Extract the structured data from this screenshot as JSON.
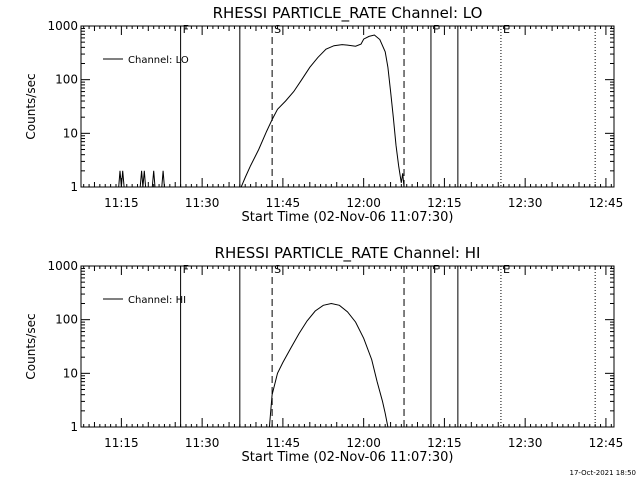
{
  "chart_data": [
    {
      "type": "line",
      "title": "RHESSI PARTICLE_RATE Channel: LO",
      "xlabel": "Start Time (02-Nov-06 11:07:30)",
      "ylabel": "Counts/sec",
      "yscale": "log",
      "ylim": [
        1,
        1000
      ],
      "xlim": [
        "11:07:30",
        "12:46:30"
      ],
      "x_ticks": [
        "11:15",
        "11:30",
        "11:45",
        "12:00",
        "12:15",
        "12:30",
        "12:45"
      ],
      "y_ticks": [
        "1",
        "10",
        "100",
        "1000"
      ],
      "legend": {
        "entry": "Channel: LO",
        "placement": "top-left"
      },
      "markers": [
        {
          "label": "F",
          "time": "11:26:00",
          "style": "solid"
        },
        {
          "label": "",
          "time": "11:37:00",
          "style": "solid"
        },
        {
          "label": "S",
          "time": "11:43:00",
          "style": "dashed"
        },
        {
          "label": "",
          "time": "12:07:30",
          "style": "dashed"
        },
        {
          "label": "F",
          "time": "12:12:30",
          "style": "solid"
        },
        {
          "label": "",
          "time": "12:17:30",
          "style": "solid"
        },
        {
          "label": "E",
          "time": "12:25:30",
          "style": "dotted"
        },
        {
          "label": "",
          "time": "12:43:00",
          "style": "dotted"
        }
      ],
      "series": [
        {
          "name": "Channel: LO",
          "points": [
            [
              "11:14:30",
              1
            ],
            [
              "11:14:45",
              2
            ],
            [
              "11:15:00",
              1
            ],
            [
              "11:15:15",
              2
            ],
            [
              "11:15:30",
              1
            ],
            [
              "11:18:30",
              1
            ],
            [
              "11:18:45",
              2
            ],
            [
              "11:19:00",
              1
            ],
            [
              "11:19:15",
              2
            ],
            [
              "11:19:30",
              1
            ],
            [
              "11:20:45",
              1
            ],
            [
              "11:21:00",
              2
            ],
            [
              "11:21:15",
              1
            ],
            [
              "11:22:30",
              1
            ],
            [
              "11:22:45",
              2
            ],
            [
              "11:23:00",
              1
            ],
            [
              "11:37:15",
              1
            ],
            [
              "11:38:00",
              1.5
            ],
            [
              "11:39:00",
              2.5
            ],
            [
              "11:40:30",
              5
            ],
            [
              "11:42:00",
              11
            ],
            [
              "11:43:00",
              18
            ],
            [
              "11:44:00",
              28
            ],
            [
              "11:45:30",
              40
            ],
            [
              "11:47:00",
              60
            ],
            [
              "11:48:30",
              100
            ],
            [
              "11:50:00",
              170
            ],
            [
              "11:51:30",
              260
            ],
            [
              "11:53:00",
              370
            ],
            [
              "11:54:30",
              430
            ],
            [
              "11:56:00",
              450
            ],
            [
              "11:57:00",
              440
            ],
            [
              "11:58:30",
              420
            ],
            [
              "11:59:30",
              460
            ],
            [
              "12:00:00",
              570
            ],
            [
              "12:01:00",
              640
            ],
            [
              "12:02:00",
              680
            ],
            [
              "12:03:00",
              560
            ],
            [
              "12:04:00",
              330
            ],
            [
              "12:04:30",
              170
            ],
            [
              "12:05:00",
              60
            ],
            [
              "12:05:30",
              20
            ],
            [
              "12:06:00",
              6
            ],
            [
              "12:06:30",
              2.5
            ],
            [
              "12:07:00",
              1.2
            ],
            [
              "12:07:15",
              1.8
            ],
            [
              "12:07:30",
              1
            ]
          ]
        }
      ]
    },
    {
      "type": "line",
      "title": "RHESSI PARTICLE_RATE Channel: HI",
      "xlabel": "Start Time (02-Nov-06 11:07:30)",
      "ylabel": "Counts/sec",
      "yscale": "log",
      "ylim": [
        1,
        1000
      ],
      "xlim": [
        "11:07:30",
        "12:46:30"
      ],
      "x_ticks": [
        "11:15",
        "11:30",
        "11:45",
        "12:00",
        "12:15",
        "12:30",
        "12:45"
      ],
      "y_ticks": [
        "1",
        "10",
        "100",
        "1000"
      ],
      "legend": {
        "entry": "Channel: HI",
        "placement": "top-left"
      },
      "markers": [
        {
          "label": "F",
          "time": "11:26:00",
          "style": "solid"
        },
        {
          "label": "",
          "time": "11:37:00",
          "style": "solid"
        },
        {
          "label": "S",
          "time": "11:43:00",
          "style": "dashed"
        },
        {
          "label": "",
          "time": "12:07:30",
          "style": "dashed"
        },
        {
          "label": "F",
          "time": "12:12:30",
          "style": "solid"
        },
        {
          "label": "",
          "time": "12:17:30",
          "style": "solid"
        },
        {
          "label": "E",
          "time": "12:25:30",
          "style": "dotted"
        },
        {
          "label": "",
          "time": "12:43:00",
          "style": "dotted"
        }
      ],
      "series": [
        {
          "name": "Channel: HI",
          "points": [
            [
              "11:42:30",
              1
            ],
            [
              "11:43:00",
              4
            ],
            [
              "11:44:00",
              10
            ],
            [
              "11:45:00",
              16
            ],
            [
              "11:46:30",
              30
            ],
            [
              "11:48:00",
              55
            ],
            [
              "11:49:30",
              95
            ],
            [
              "11:51:00",
              145
            ],
            [
              "11:52:30",
              185
            ],
            [
              "11:54:00",
              200
            ],
            [
              "11:55:30",
              185
            ],
            [
              "11:57:00",
              140
            ],
            [
              "11:58:30",
              90
            ],
            [
              "12:00:00",
              45
            ],
            [
              "12:01:30",
              18
            ],
            [
              "12:02:30",
              7
            ],
            [
              "12:03:30",
              3
            ],
            [
              "12:04:00",
              1.8
            ],
            [
              "12:04:30",
              1
            ]
          ]
        }
      ]
    }
  ],
  "footer": {
    "timestamp": "17-Oct-2021 18:50"
  }
}
